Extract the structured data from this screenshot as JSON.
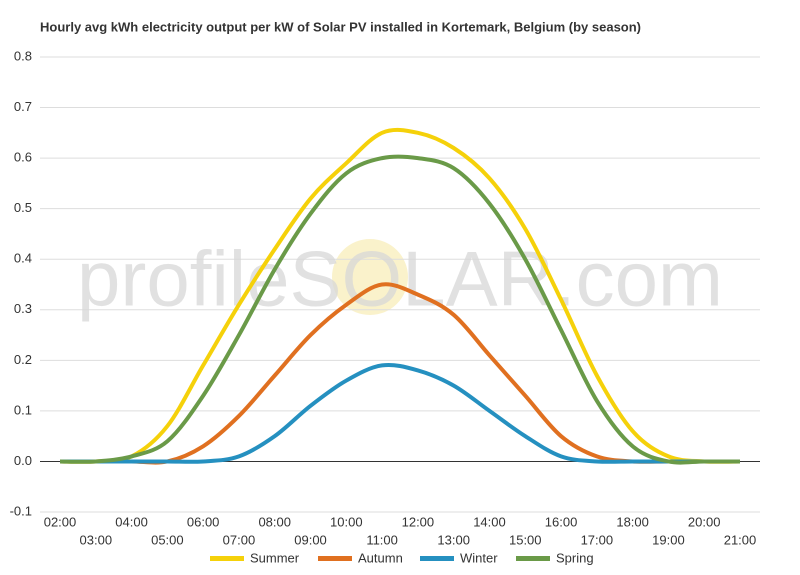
{
  "chart_data": {
    "type": "line",
    "title": "Hourly avg kWh electricity output per kW of Solar PV installed in Kortemark, Belgium (by season)",
    "watermark": "profileSOLAR.com",
    "categories": [
      "02:00",
      "03:00",
      "04:00",
      "05:00",
      "06:00",
      "07:00",
      "08:00",
      "09:00",
      "10:00",
      "11:00",
      "12:00",
      "13:00",
      "14:00",
      "15:00",
      "16:00",
      "17:00",
      "18:00",
      "19:00",
      "20:00",
      "21:00"
    ],
    "series": [
      {
        "name": "Summer",
        "color": "#f5d10a",
        "values": [
          0,
          0,
          0.01,
          0.07,
          0.19,
          0.31,
          0.42,
          0.52,
          0.59,
          0.65,
          0.65,
          0.62,
          0.56,
          0.46,
          0.32,
          0.17,
          0.06,
          0.01,
          0,
          0
        ]
      },
      {
        "name": "Autumn",
        "color": "#e07020",
        "values": [
          0,
          0,
          0,
          0,
          0.03,
          0.09,
          0.17,
          0.25,
          0.31,
          0.35,
          0.33,
          0.29,
          0.21,
          0.13,
          0.05,
          0.01,
          0,
          0,
          0,
          0
        ]
      },
      {
        "name": "Winter",
        "color": "#2590c0",
        "values": [
          0,
          0,
          0,
          0,
          0,
          0.01,
          0.05,
          0.11,
          0.16,
          0.19,
          0.18,
          0.15,
          0.1,
          0.05,
          0.01,
          0,
          0,
          0,
          0,
          0
        ]
      },
      {
        "name": "Spring",
        "color": "#6a9a48",
        "values": [
          0,
          0,
          0.01,
          0.04,
          0.13,
          0.25,
          0.38,
          0.49,
          0.57,
          0.6,
          0.6,
          0.58,
          0.51,
          0.4,
          0.26,
          0.12,
          0.03,
          0,
          0,
          0
        ]
      }
    ],
    "ylim": [
      -0.1,
      0.8
    ],
    "yticks": [
      -0.1,
      {
        "value": 0,
        "label": "0.0"
      },
      0.1,
      0.2,
      0.3,
      0.4,
      0.5,
      0.6,
      0.7,
      0.8
    ],
    "grid": true,
    "legend": "bottom"
  }
}
